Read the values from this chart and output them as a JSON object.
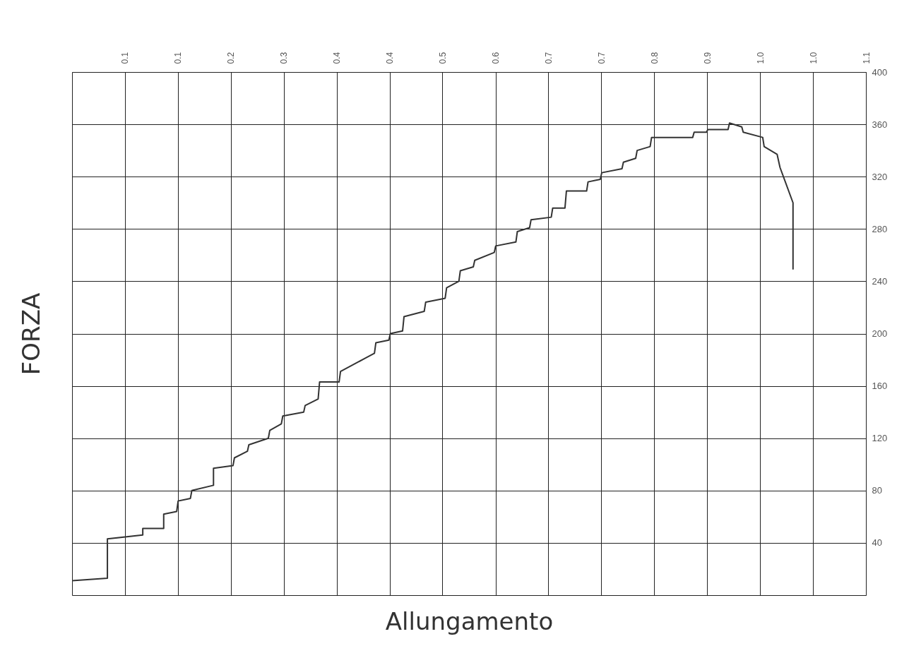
{
  "chart_data": {
    "type": "step",
    "xlabel": "Allungamento",
    "ylabel": "FORZA",
    "color": "#333333",
    "x": [
      0,
      0.049,
      0.049,
      0.098,
      0.098,
      0.127,
      0.127,
      0.145,
      0.147,
      0.164,
      0.166,
      0.196,
      0.196,
      0.223,
      0.225,
      0.243,
      0.245,
      0.272,
      0.274,
      0.29,
      0.292,
      0.321,
      0.323,
      0.341,
      0.343,
      0.37,
      0.372,
      0.419,
      0.421,
      0.439,
      0.441,
      0.458,
      0.46,
      0.488,
      0.49,
      0.517,
      0.519,
      0.536,
      0.538,
      0.556,
      0.558,
      0.585,
      0.587,
      0.615,
      0.617,
      0.634,
      0.636,
      0.664,
      0.666,
      0.683,
      0.685,
      0.713,
      0.715,
      0.732,
      0.734,
      0.762,
      0.764,
      0.781,
      0.783,
      0.801,
      0.803,
      0.86,
      0.862,
      0.879,
      0.881,
      0.909,
      0.911,
      0.928,
      0.93,
      0.957,
      0.959,
      0.977,
      0.981,
      0.999,
      0.999
    ],
    "values": [
      11,
      13,
      43,
      46,
      51,
      51,
      62,
      64,
      72,
      74,
      80,
      84,
      97,
      99,
      105,
      110,
      115,
      120,
      126,
      131,
      137,
      140,
      145,
      150,
      163,
      163,
      171,
      185,
      193,
      195,
      200,
      202,
      213,
      217,
      224,
      227,
      235,
      240,
      248,
      251,
      256,
      262,
      267,
      270,
      278,
      281,
      287,
      289,
      296,
      296,
      309,
      309,
      316,
      318,
      323,
      326,
      331,
      334,
      340,
      343,
      350,
      350,
      354,
      354,
      356,
      356,
      361,
      358,
      354,
      350,
      343,
      337,
      327,
      300,
      249
    ],
    "xlim": [
      0,
      1.1
    ],
    "xticks": [
      {
        "value": 0.0733,
        "label": "0.1"
      },
      {
        "value": 0.1467,
        "label": "0.1"
      },
      {
        "value": 0.22,
        "label": "0.2"
      },
      {
        "value": 0.2933,
        "label": "0.3"
      },
      {
        "value": 0.3667,
        "label": "0.4"
      },
      {
        "value": 0.44,
        "label": "0.4"
      },
      {
        "value": 0.5133,
        "label": "0.5"
      },
      {
        "value": 0.5867,
        "label": "0.6"
      },
      {
        "value": 0.66,
        "label": "0.7"
      },
      {
        "value": 0.7333,
        "label": "0.7"
      },
      {
        "value": 0.8067,
        "label": "0.8"
      },
      {
        "value": 0.88,
        "label": "0.9"
      },
      {
        "value": 0.9533,
        "label": "1.0"
      },
      {
        "value": 1.0267,
        "label": "1.0"
      },
      {
        "value": 1.1,
        "label": "1.1"
      }
    ],
    "ylim": [
      0,
      400
    ],
    "yticks": [
      40,
      80,
      120,
      160,
      200,
      240,
      280,
      320,
      360,
      400
    ],
    "grid": true
  }
}
